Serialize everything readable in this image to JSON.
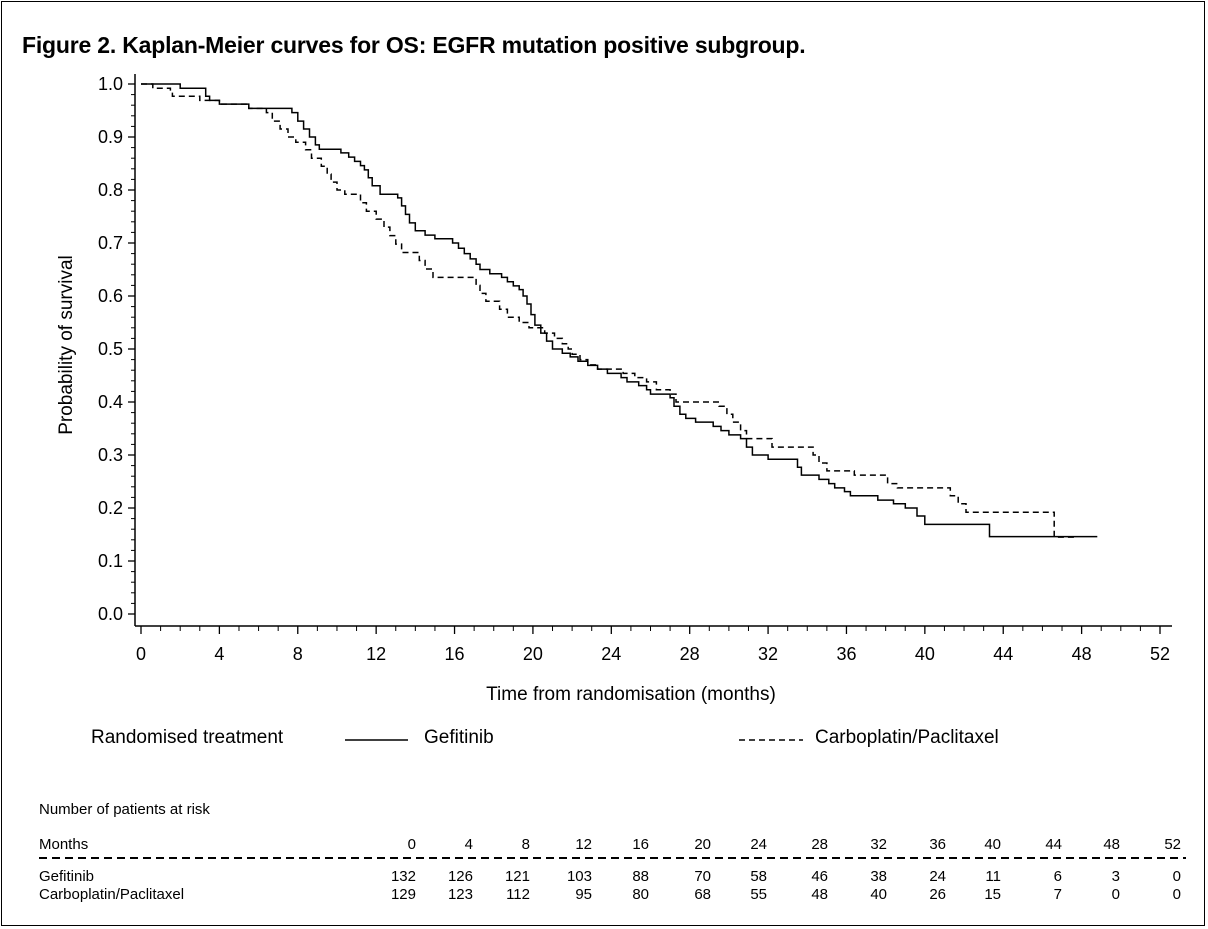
{
  "title": "Figure 2. Kaplan-Meier curves for OS: EGFR mutation positive subgroup.",
  "legend": {
    "heading": "Randomised treatment",
    "series": [
      {
        "name": "Gefitinib",
        "style": "solid"
      },
      {
        "name": "Carboplatin/Paclitaxel",
        "style": "dashed"
      }
    ]
  },
  "risk_table": {
    "heading": "Number of patients at risk",
    "months_label": "Months",
    "months": [
      "0",
      "4",
      "8",
      "12",
      "16",
      "20",
      "24",
      "28",
      "32",
      "36",
      "40",
      "44",
      "48",
      "52"
    ],
    "rows": [
      {
        "label": "Gefitinib",
        "values": [
          "132",
          "126",
          "121",
          "103",
          "88",
          "70",
          "58",
          "46",
          "38",
          "24",
          "11",
          "6",
          "3",
          "0"
        ]
      },
      {
        "label": "Carboplatin/Paclitaxel",
        "values": [
          "129",
          "123",
          "112",
          "95",
          "80",
          "68",
          "55",
          "48",
          "40",
          "26",
          "15",
          "7",
          "0",
          "0"
        ]
      }
    ]
  },
  "chart_data": {
    "type": "line",
    "step": true,
    "title": "Figure 2. Kaplan-Meier curves for OS: EGFR mutation positive subgroup.",
    "xlabel": "Time from randomisation (months)",
    "ylabel": "Probability of survival",
    "xlim": [
      0,
      52
    ],
    "ylim": [
      0,
      1
    ],
    "xticks": [
      "0",
      "4",
      "8",
      "12",
      "16",
      "20",
      "24",
      "28",
      "32",
      "36",
      "40",
      "44",
      "48",
      "52"
    ],
    "yticks": [
      "0.0",
      "0.1",
      "0.2",
      "0.3",
      "0.4",
      "0.5",
      "0.6",
      "0.7",
      "0.8",
      "0.9",
      "1.0"
    ],
    "grid": false,
    "series": [
      {
        "name": "Gefitinib",
        "line": "solid",
        "points": [
          [
            0,
            1.0
          ],
          [
            2.0,
            0.992
          ],
          [
            3.3,
            0.977
          ],
          [
            3.5,
            0.969
          ],
          [
            4.0,
            0.962
          ],
          [
            5.5,
            0.954
          ],
          [
            7.7,
            0.946
          ],
          [
            8.0,
            0.93
          ],
          [
            8.3,
            0.915
          ],
          [
            8.6,
            0.9
          ],
          [
            8.9,
            0.885
          ],
          [
            9.1,
            0.877
          ],
          [
            10.2,
            0.87
          ],
          [
            10.6,
            0.862
          ],
          [
            10.9,
            0.854
          ],
          [
            11.2,
            0.846
          ],
          [
            11.4,
            0.838
          ],
          [
            11.6,
            0.823
          ],
          [
            11.8,
            0.808
          ],
          [
            12.2,
            0.792
          ],
          [
            13.1,
            0.785
          ],
          [
            13.3,
            0.77
          ],
          [
            13.5,
            0.754
          ],
          [
            13.7,
            0.738
          ],
          [
            14.0,
            0.723
          ],
          [
            14.5,
            0.715
          ],
          [
            15.0,
            0.708
          ],
          [
            15.9,
            0.7
          ],
          [
            16.2,
            0.69
          ],
          [
            16.5,
            0.68
          ],
          [
            16.8,
            0.67
          ],
          [
            17.1,
            0.66
          ],
          [
            17.3,
            0.65
          ],
          [
            17.8,
            0.642
          ],
          [
            18.4,
            0.635
          ],
          [
            18.7,
            0.627
          ],
          [
            19.0,
            0.619
          ],
          [
            19.3,
            0.612
          ],
          [
            19.5,
            0.6
          ],
          [
            19.7,
            0.585
          ],
          [
            19.9,
            0.565
          ],
          [
            20.1,
            0.545
          ],
          [
            20.4,
            0.53
          ],
          [
            20.7,
            0.515
          ],
          [
            21.0,
            0.5
          ],
          [
            21.5,
            0.492
          ],
          [
            21.9,
            0.485
          ],
          [
            22.3,
            0.477
          ],
          [
            22.8,
            0.469
          ],
          [
            23.3,
            0.462
          ],
          [
            23.8,
            0.454
          ],
          [
            24.5,
            0.446
          ],
          [
            24.8,
            0.438
          ],
          [
            25.4,
            0.431
          ],
          [
            25.8,
            0.423
          ],
          [
            26.0,
            0.415
          ],
          [
            27.0,
            0.408
          ],
          [
            27.2,
            0.392
          ],
          [
            27.5,
            0.377
          ],
          [
            27.8,
            0.369
          ],
          [
            28.3,
            0.362
          ],
          [
            29.2,
            0.354
          ],
          [
            29.6,
            0.346
          ],
          [
            30.0,
            0.338
          ],
          [
            30.6,
            0.331
          ],
          [
            30.9,
            0.315
          ],
          [
            31.2,
            0.3
          ],
          [
            32.0,
            0.292
          ],
          [
            33.5,
            0.277
          ],
          [
            33.7,
            0.262
          ],
          [
            34.6,
            0.254
          ],
          [
            35.1,
            0.246
          ],
          [
            35.4,
            0.238
          ],
          [
            35.9,
            0.231
          ],
          [
            36.2,
            0.223
          ],
          [
            37.6,
            0.215
          ],
          [
            38.4,
            0.208
          ],
          [
            39.0,
            0.2
          ],
          [
            39.6,
            0.185
          ],
          [
            40.0,
            0.169
          ],
          [
            43.3,
            0.146
          ],
          [
            48.8,
            0.146
          ]
        ]
      },
      {
        "name": "Carboplatin/Paclitaxel",
        "line": "dashed",
        "points": [
          [
            0,
            1.0
          ],
          [
            0.6,
            0.992
          ],
          [
            1.5,
            0.984
          ],
          [
            1.6,
            0.977
          ],
          [
            3.0,
            0.969
          ],
          [
            3.5,
            0.969
          ],
          [
            4.0,
            0.962
          ],
          [
            5.5,
            0.954
          ],
          [
            6.4,
            0.946
          ],
          [
            6.7,
            0.93
          ],
          [
            7.1,
            0.915
          ],
          [
            7.5,
            0.9
          ],
          [
            7.9,
            0.89
          ],
          [
            8.4,
            0.876
          ],
          [
            8.7,
            0.86
          ],
          [
            9.2,
            0.845
          ],
          [
            9.5,
            0.83
          ],
          [
            9.7,
            0.815
          ],
          [
            10.0,
            0.8
          ],
          [
            10.4,
            0.792
          ],
          [
            11.2,
            0.776
          ],
          [
            11.5,
            0.76
          ],
          [
            12.0,
            0.745
          ],
          [
            12.4,
            0.73
          ],
          [
            12.7,
            0.714
          ],
          [
            13.0,
            0.698
          ],
          [
            13.3,
            0.682
          ],
          [
            14.2,
            0.667
          ],
          [
            14.5,
            0.651
          ],
          [
            14.9,
            0.635
          ],
          [
            17.1,
            0.62
          ],
          [
            17.3,
            0.605
          ],
          [
            17.6,
            0.59
          ],
          [
            18.3,
            0.575
          ],
          [
            18.7,
            0.56
          ],
          [
            19.3,
            0.55
          ],
          [
            19.8,
            0.54
          ],
          [
            20.6,
            0.53
          ],
          [
            21.1,
            0.52
          ],
          [
            21.5,
            0.51
          ],
          [
            21.8,
            0.5
          ],
          [
            22.0,
            0.49
          ],
          [
            22.4,
            0.48
          ],
          [
            22.8,
            0.47
          ],
          [
            23.3,
            0.462
          ],
          [
            24.6,
            0.454
          ],
          [
            25.2,
            0.446
          ],
          [
            25.8,
            0.438
          ],
          [
            26.3,
            0.423
          ],
          [
            27.0,
            0.415
          ],
          [
            27.3,
            0.4
          ],
          [
            29.5,
            0.392
          ],
          [
            29.9,
            0.377
          ],
          [
            30.2,
            0.362
          ],
          [
            30.6,
            0.346
          ],
          [
            30.9,
            0.331
          ],
          [
            32.2,
            0.315
          ],
          [
            34.3,
            0.3
          ],
          [
            34.6,
            0.285
          ],
          [
            35.0,
            0.27
          ],
          [
            36.4,
            0.262
          ],
          [
            38.1,
            0.246
          ],
          [
            38.6,
            0.238
          ],
          [
            41.3,
            0.223
          ],
          [
            41.7,
            0.208
          ],
          [
            42.1,
            0.192
          ],
          [
            46.6,
            0.145
          ],
          [
            47.7,
            0.145
          ]
        ]
      }
    ]
  }
}
